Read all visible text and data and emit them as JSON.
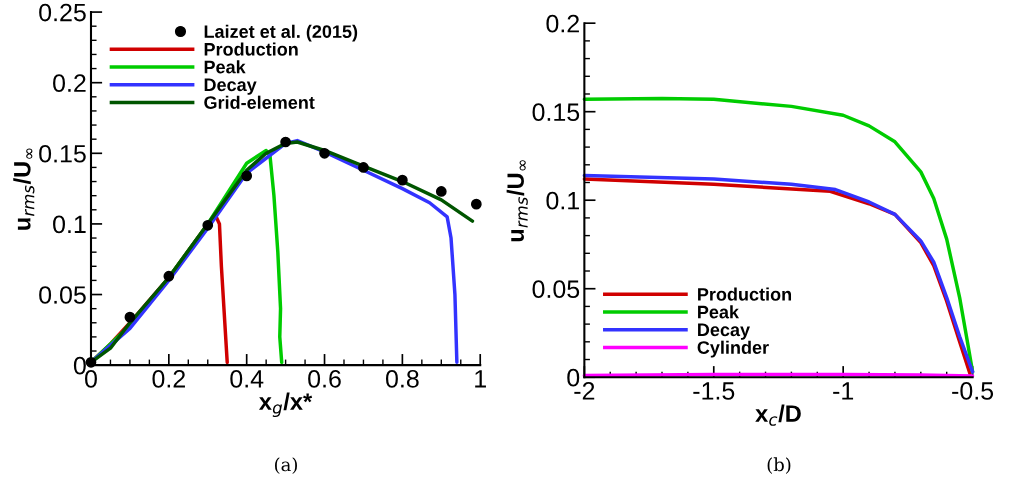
{
  "chart_data": [
    {
      "type": "line",
      "xlabel": "x$_{g}$/x*",
      "ylabel": "u$_{rms}$/U$_{∞}$",
      "xlim": [
        0,
        1
      ],
      "ylim": [
        0,
        0.25
      ],
      "xticks": [
        0,
        0.2,
        0.4,
        0.6,
        0.8,
        1
      ],
      "yticks": [
        0,
        0.05,
        0.1,
        0.15,
        0.2,
        0.25
      ],
      "grid": false,
      "legend": "top left",
      "annotations": [
        "(a)"
      ],
      "series": [
        {
          "name": "Laizet et al. (2015)",
          "type": "scatter",
          "marker": "circle",
          "color": "#000000",
          "x": [
            0,
            0.1,
            0.2,
            0.3,
            0.4,
            0.5,
            0.6,
            0.7,
            0.8,
            0.9,
            0.99
          ],
          "values": [
            0.002,
            0.034,
            0.063,
            0.099,
            0.134,
            0.158,
            0.15,
            0.14,
            0.131,
            0.123,
            0.114
          ]
        },
        {
          "name": "Production",
          "color": "#d00000",
          "x": [
            0,
            0.05,
            0.1,
            0.2,
            0.3,
            0.32,
            0.33,
            0.335,
            0.35
          ],
          "values": [
            0.002,
            0.015,
            0.03,
            0.062,
            0.1,
            0.106,
            0.1,
            0.07,
            0.002
          ]
        },
        {
          "name": "Peak",
          "color": "#00cc00",
          "x": [
            0,
            0.1,
            0.2,
            0.3,
            0.4,
            0.45,
            0.46,
            0.47,
            0.48,
            0.487,
            0.485,
            0.49
          ],
          "values": [
            0.002,
            0.028,
            0.062,
            0.1,
            0.143,
            0.152,
            0.148,
            0.12,
            0.08,
            0.04,
            0.02,
            0.002
          ]
        },
        {
          "name": "Decay",
          "color": "#3333ff",
          "x": [
            0,
            0.1,
            0.2,
            0.3,
            0.4,
            0.5,
            0.53,
            0.6,
            0.7,
            0.8,
            0.87,
            0.915,
            0.925,
            0.935,
            0.94
          ],
          "values": [
            0.002,
            0.026,
            0.06,
            0.097,
            0.136,
            0.157,
            0.159,
            0.151,
            0.138,
            0.125,
            0.115,
            0.105,
            0.09,
            0.05,
            0.002
          ]
        },
        {
          "name": "Grid-element",
          "color": "#005500",
          "x": [
            0,
            0.05,
            0.1,
            0.2,
            0.3,
            0.4,
            0.45,
            0.5,
            0.53,
            0.6,
            0.7,
            0.8,
            0.9,
            0.98
          ],
          "values": [
            0.002,
            0.012,
            0.03,
            0.062,
            0.1,
            0.138,
            0.15,
            0.157,
            0.158,
            0.152,
            0.141,
            0.13,
            0.117,
            0.102
          ]
        }
      ]
    },
    {
      "type": "line",
      "xlabel": "x$_{c}$/D",
      "ylabel": "u$_{rms}$/U$_{∞}$",
      "xlim": [
        -2,
        -0.5
      ],
      "ylim": [
        0,
        0.2
      ],
      "xticks": [
        -2,
        -1.5,
        -1,
        -0.5
      ],
      "yticks": [
        0,
        0.05,
        0.1,
        0.15,
        0.2
      ],
      "grid": false,
      "legend": "bottom left",
      "annotations": [
        "(b)"
      ],
      "series": [
        {
          "name": "Production",
          "color": "#d00000",
          "x": [
            -2,
            -1.5,
            -1.05,
            -0.9,
            -0.8,
            -0.7,
            -0.65,
            -0.6,
            -0.55,
            -0.51
          ],
          "values": [
            0.112,
            0.109,
            0.105,
            0.098,
            0.092,
            0.076,
            0.063,
            0.043,
            0.02,
            0.002
          ]
        },
        {
          "name": "Peak",
          "color": "#00cc00",
          "x": [
            -2,
            -1.7,
            -1.5,
            -1.2,
            -1,
            -0.9,
            -0.8,
            -0.7,
            -0.65,
            -0.6,
            -0.55,
            -0.52,
            -0.5
          ],
          "values": [
            0.157,
            0.1575,
            0.157,
            0.153,
            0.148,
            0.142,
            0.133,
            0.116,
            0.101,
            0.078,
            0.045,
            0.02,
            0.003
          ]
        },
        {
          "name": "Decay",
          "color": "#3333ff",
          "x": [
            -2,
            -1.5,
            -1.2,
            -1.03,
            -0.9,
            -0.8,
            -0.7,
            -0.65,
            -0.6,
            -0.55,
            -0.5
          ],
          "values": [
            0.114,
            0.112,
            0.109,
            0.106,
            0.099,
            0.092,
            0.077,
            0.065,
            0.045,
            0.023,
            0.003
          ]
        },
        {
          "name": "Cylinder",
          "color": "#ff00ff",
          "x": [
            -2,
            -1.5,
            -1,
            -0.7,
            -0.5
          ],
          "values": [
            0.001,
            0.0015,
            0.0015,
            0.0013,
            0.0007
          ]
        }
      ]
    }
  ]
}
